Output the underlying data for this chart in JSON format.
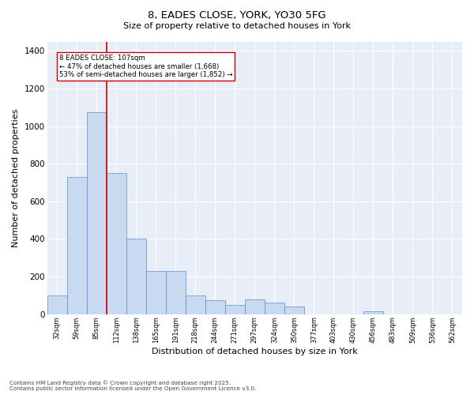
{
  "title1": "8, EADES CLOSE, YORK, YO30 5FG",
  "title2": "Size of property relative to detached houses in York",
  "xlabel": "Distribution of detached houses by size in York",
  "ylabel": "Number of detached properties",
  "bar_color": "#c9d9f0",
  "bar_edge_color": "#5b8fd4",
  "background_color": "#e8eef8",
  "categories": [
    "32sqm",
    "59sqm",
    "85sqm",
    "112sqm",
    "138sqm",
    "165sqm",
    "191sqm",
    "218sqm",
    "244sqm",
    "271sqm",
    "297sqm",
    "324sqm",
    "350sqm",
    "377sqm",
    "403sqm",
    "430sqm",
    "456sqm",
    "483sqm",
    "509sqm",
    "536sqm",
    "562sqm"
  ],
  "values": [
    100,
    730,
    1075,
    750,
    400,
    230,
    230,
    100,
    75,
    50,
    80,
    60,
    40,
    0,
    0,
    0,
    15,
    0,
    0,
    0,
    0
  ],
  "ylim": [
    0,
    1450
  ],
  "yticks": [
    0,
    200,
    400,
    600,
    800,
    1000,
    1200,
    1400
  ],
  "red_line_x": 2.5,
  "annotation_text": "8 EADES CLOSE: 107sqm\n← 47% of detached houses are smaller (1,668)\n53% of semi-detached houses are larger (1,852) →",
  "annotation_box_color": "#ffffff",
  "annotation_box_edge": "#cc0000",
  "red_line_color": "#cc0000",
  "footer_line1": "Contains HM Land Registry data © Crown copyright and database right 2025.",
  "footer_line2": "Contains public sector information licensed under the Open Government Licence v3.0."
}
